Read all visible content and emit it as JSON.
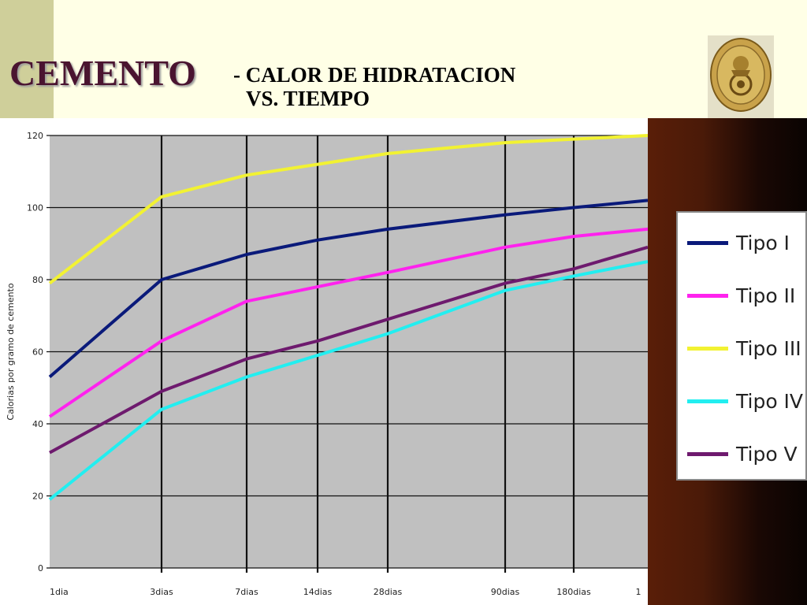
{
  "slide": {
    "title": "CEMENTO",
    "subtitle_line1": "- CALOR DE HIDRATACION",
    "subtitle_line2": "VS. TIEMPO",
    "colors": {
      "title": "#4a1430",
      "background": "#ffffe6",
      "plot_bg": "#c0c0c0"
    }
  },
  "chart_data": {
    "type": "line",
    "ylabel": "Calorias por gramo de cemento",
    "xlabel": "",
    "ylim": [
      0,
      120
    ],
    "yticks": [
      0,
      20,
      40,
      60,
      80,
      100,
      120
    ],
    "categories": [
      "1dia",
      "3dias",
      "7dias",
      "14dias",
      "28dias",
      "90dias",
      "180dias",
      "1"
    ],
    "x_positions": [
      1,
      3,
      7,
      14,
      28,
      90,
      180,
      365
    ],
    "grid": true,
    "legend_position": "right",
    "series": [
      {
        "name": "Tipo I",
        "color": "#0a1a7a",
        "values": [
          53,
          80,
          87,
          91,
          94,
          98,
          100,
          102
        ]
      },
      {
        "name": "Tipo II",
        "color": "#ff22ee",
        "values": [
          42,
          63,
          74,
          78,
          82,
          89,
          92,
          94
        ]
      },
      {
        "name": "Tipo III",
        "color": "#f2f232",
        "values": [
          79,
          103,
          109,
          112,
          115,
          118,
          119,
          120
        ]
      },
      {
        "name": "Tipo IV",
        "color": "#22eef0",
        "values": [
          19,
          44,
          53,
          59,
          65,
          77,
          81,
          85
        ]
      },
      {
        "name": "Tipo V",
        "color": "#6e1a6e",
        "values": [
          32,
          49,
          58,
          63,
          69,
          79,
          83,
          89
        ]
      }
    ]
  }
}
